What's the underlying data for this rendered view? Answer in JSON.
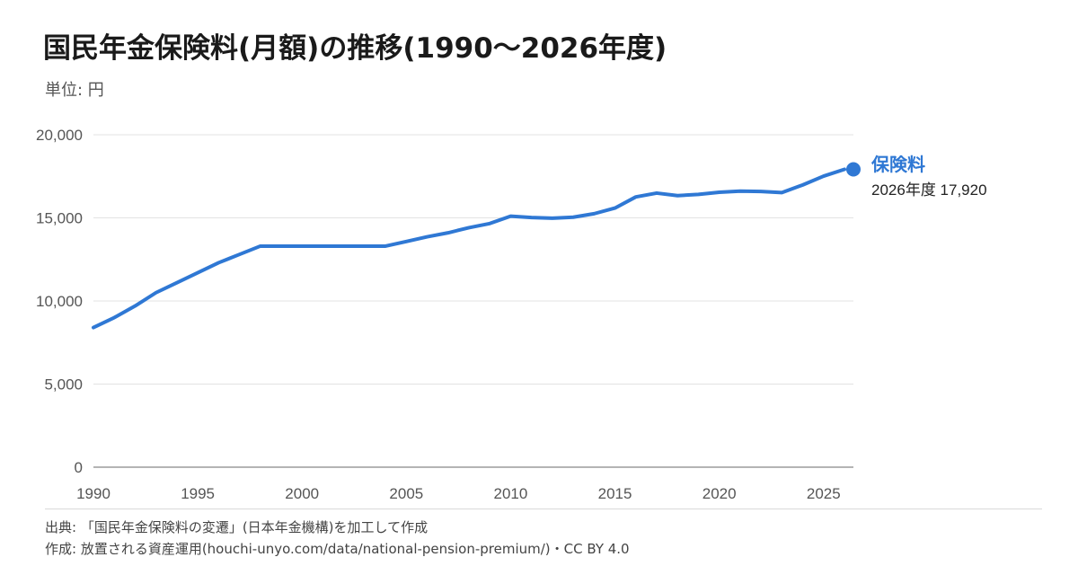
{
  "title": "国民年金保険料(月額)の推移(1990〜2026年度)",
  "unit_label": "単位: 円",
  "footer": {
    "source": "出典: 「国民年金保険料の変遷」(日本年金機構)を加工して作成",
    "credit": "作成: 放置される資産運用(houchi-unyo.com/data/national-pension-premium/)・CC BY 4.0"
  },
  "colors": {
    "series": "#2f78d4",
    "grid": "#e3e3e3",
    "axis": "#888888"
  },
  "chart_data": {
    "type": "line",
    "title": "国民年金保険料(月額)の推移(1990〜2026年度)",
    "ylabel": "単位: 円",
    "xlim": [
      1990,
      2026
    ],
    "ylim": [
      0,
      20000
    ],
    "grid": true,
    "x_ticks": [
      1990,
      1995,
      2000,
      2005,
      2010,
      2015,
      2020,
      2025
    ],
    "y_ticks": [
      0,
      5000,
      10000,
      15000,
      20000
    ],
    "x_tick_labels": [
      "1990",
      "1995",
      "2000",
      "2005",
      "2010",
      "2015",
      "2020",
      "2025"
    ],
    "y_tick_labels": [
      "0",
      "5,000",
      "10,000",
      "15,000",
      "20,000"
    ],
    "x": [
      1990,
      1991,
      1992,
      1993,
      1994,
      1995,
      1996,
      1997,
      1998,
      1999,
      2000,
      2001,
      2002,
      2003,
      2004,
      2005,
      2006,
      2007,
      2008,
      2009,
      2010,
      2011,
      2012,
      2013,
      2014,
      2015,
      2016,
      2017,
      2018,
      2019,
      2020,
      2021,
      2022,
      2023,
      2024,
      2025,
      2026
    ],
    "series": [
      {
        "name": "保険料",
        "values": [
          8400,
          9000,
          9700,
          10500,
          11100,
          11700,
          12300,
          12800,
          13300,
          13300,
          13300,
          13300,
          13300,
          13300,
          13300,
          13580,
          13860,
          14100,
          14410,
          14660,
          15100,
          15020,
          14980,
          15040,
          15250,
          15590,
          16260,
          16490,
          16340,
          16410,
          16540,
          16610,
          16590,
          16520,
          16980,
          17510,
          17920
        ],
        "end_label": "2026年度 17,920"
      }
    ]
  }
}
